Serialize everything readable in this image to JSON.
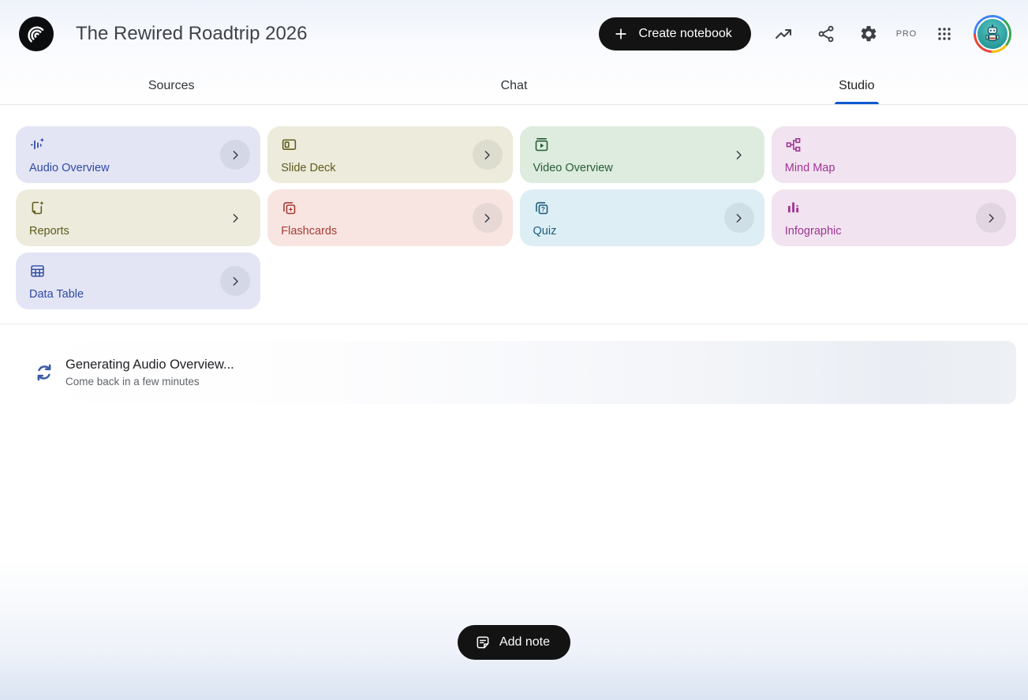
{
  "header": {
    "title": "The Rewired Roadtrip 2026",
    "create_button_label": "Create notebook",
    "pro_label": "PRO",
    "icons": [
      "notebooklm-logo",
      "plus-icon",
      "analytics-trend-icon",
      "share-icon",
      "settings-gear-icon",
      "apps-grid-icon",
      "user-avatar-robot"
    ]
  },
  "tabs": [
    {
      "label": "Sources",
      "active": false
    },
    {
      "label": "Chat",
      "active": false
    },
    {
      "label": "Studio",
      "active": true
    }
  ],
  "studio": {
    "tools": [
      {
        "label": "Audio Overview",
        "icon": "audio-waveform-icon",
        "bg": "#e3e5f5",
        "fg": "#2e4aa3",
        "chevron": "circle"
      },
      {
        "label": "Slide Deck",
        "icon": "slide-deck-icon",
        "bg": "#ecebdc",
        "fg": "#5f5c1d",
        "chevron": "circle"
      },
      {
        "label": "Video Overview",
        "icon": "video-overview-icon",
        "bg": "#ddecdf",
        "fg": "#265c35",
        "chevron": "plain"
      },
      {
        "label": "Mind Map",
        "icon": "mind-map-icon",
        "bg": "#f1e3ef",
        "fg": "#9f3596",
        "chevron": "none"
      },
      {
        "label": "Reports",
        "icon": "report-sparkle-icon",
        "bg": "#ecebdc",
        "fg": "#5f5c1d",
        "chevron": "plain"
      },
      {
        "label": "Flashcards",
        "icon": "flashcards-icon",
        "bg": "#f8e5e2",
        "fg": "#a43b32",
        "chevron": "circle"
      },
      {
        "label": "Quiz",
        "icon": "quiz-icon",
        "bg": "#ddeef4",
        "fg": "#1b5c80",
        "chevron": "circle"
      },
      {
        "label": "Infographic",
        "icon": "infographic-icon",
        "bg": "#f1e3ef",
        "fg": "#9f3596",
        "chevron": "circle"
      },
      {
        "label": "Data Table",
        "icon": "data-table-icon",
        "bg": "#e3e5f5",
        "fg": "#2e4aa3",
        "chevron": "circle"
      }
    ],
    "generating": {
      "title": "Generating Audio Overview...",
      "subtitle": "Come back in a few minutes",
      "spinner_icon": "sync-spinner-icon"
    },
    "add_note_label": "Add note",
    "add_note_icon": "note-icon"
  },
  "colors": {
    "active_tab_underline": "#0b57d0",
    "primary_button_bg": "#131314",
    "spinner_blue": "#3b5ba5",
    "page_bottom_fade": "#dbe4f3",
    "avatar_ring": [
      "#4285f4",
      "#34a853",
      "#fbbc05",
      "#ea4335"
    ]
  }
}
